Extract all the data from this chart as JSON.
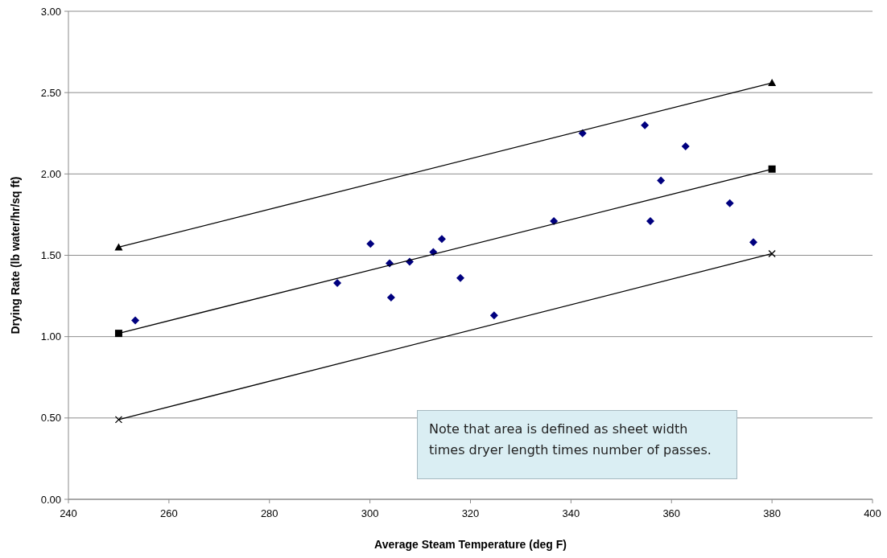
{
  "chart_data": {
    "type": "scatter",
    "xlabel": "Average Steam Temperature (deg F)",
    "ylabel": "Drying Rate (lb water/hr/sq ft)",
    "xlim": [
      240,
      400
    ],
    "xticks": [
      240,
      260,
      280,
      300,
      320,
      340,
      360,
      380,
      400
    ],
    "ylim": [
      0,
      3
    ],
    "yticks": [
      {
        "value": 0,
        "label": "0.00"
      },
      {
        "value": 0.5,
        "label": "0.50"
      },
      {
        "value": 1,
        "label": "1.00"
      },
      {
        "value": 1.5,
        "label": "1.50"
      },
      {
        "value": 2,
        "label": "2.00"
      },
      {
        "value": 2.5,
        "label": "2.50"
      },
      {
        "value": 3,
        "label": "3.00"
      }
    ],
    "grid": "y",
    "annotations": [
      "Note that area is defined as sheet width times dryer length times number of passes."
    ],
    "series": [
      {
        "type": "scatter",
        "color": "#00007f",
        "marker": "diamond",
        "x": [
          253.3,
          293.5,
          300.1,
          303.9,
          304.2,
          307.9,
          312.6,
          314.3,
          318.0,
          324.7,
          336.6,
          342.3,
          354.7,
          355.8,
          357.9,
          362.8,
          371.6,
          376.3
        ],
        "values": [
          1.1,
          1.33,
          1.57,
          1.45,
          1.24,
          1.46,
          1.52,
          1.6,
          1.36,
          1.13,
          1.71,
          2.25,
          2.3,
          1.71,
          1.96,
          2.17,
          1.82,
          1.58
        ]
      },
      {
        "type": "line",
        "color": "#000000",
        "marker": "triangle",
        "x": [
          250,
          380
        ],
        "values": [
          1.55,
          2.56
        ]
      },
      {
        "type": "line",
        "color": "#000000",
        "marker": "square",
        "x": [
          250,
          380
        ],
        "values": [
          1.02,
          2.03
        ]
      },
      {
        "type": "line",
        "color": "#000000",
        "marker": "cross",
        "x": [
          250,
          380
        ],
        "values": [
          0.49,
          1.51
        ]
      }
    ]
  }
}
